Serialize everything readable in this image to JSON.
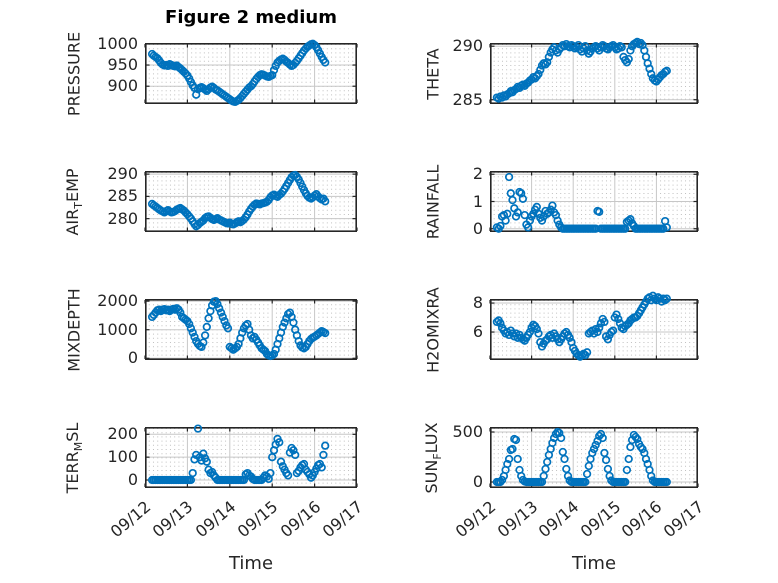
{
  "figure": {
    "title": "Figure 2 medium",
    "style": {
      "marker_color": "#0072BD",
      "axis_color": "#262626",
      "major_grid_color": "#c7c7c7",
      "minor_grid_color": "#c0c0c0",
      "background": "#ffffff"
    }
  },
  "x_axis": {
    "label": "Time",
    "lim": [
      0,
      5
    ],
    "tick_positions": [
      0,
      1,
      2,
      3,
      4,
      5
    ],
    "tick_labels": [
      "09/12",
      "09/13",
      "09/14",
      "09/15",
      "09/16",
      "09/17"
    ],
    "minor_step": 0.1
  },
  "chart_data": [
    {
      "type": "scatter",
      "id": "pressure",
      "name": "PRESSURE",
      "ylabel_parts": [
        {
          "text": "PRESSURE"
        }
      ],
      "yticks": [
        900,
        950,
        1000
      ],
      "ylim": [
        858,
        1002
      ],
      "x_start": 0.167,
      "x_step": 0.0416667,
      "show_x_tick_labels": false,
      "values": [
        976,
        972,
        969,
        966,
        961,
        955,
        951,
        949,
        950,
        948,
        952,
        950,
        948,
        947,
        949,
        945,
        942,
        938,
        934,
        930,
        925,
        918,
        910,
        902,
        896,
        880,
        893,
        896,
        898,
        895,
        892,
        889,
        893,
        897,
        899,
        896,
        892,
        890,
        887,
        884,
        881,
        878,
        875,
        872,
        869,
        866,
        864,
        863,
        865,
        868,
        872,
        877,
        882,
        887,
        892,
        897,
        900,
        905,
        911,
        917,
        922,
        926,
        928,
        927,
        925,
        923,
        922,
        924,
        926,
        938,
        948,
        956,
        960,
        963,
        965,
        962,
        958,
        955,
        951,
        948,
        950,
        955,
        960,
        966,
        972,
        978,
        984,
        989,
        993,
        996,
        999,
        1000,
        997,
        992,
        985,
        977,
        969,
        962,
        956
      ]
    },
    {
      "type": "scatter",
      "id": "theta",
      "name": "THETA",
      "ylabel_parts": [
        {
          "text": "THETA"
        }
      ],
      "yticks": [
        285,
        290
      ],
      "ylim": [
        284.6,
        290.3
      ],
      "x_start": 0.167,
      "x_step": 0.0416667,
      "show_x_tick_labels": false,
      "values": [
        285.2,
        285.1,
        285.3,
        285.2,
        285.4,
        285.3,
        285.5,
        285.6,
        285.8,
        285.7,
        285.9,
        286.0,
        286.2,
        286.1,
        286.3,
        286.4,
        286.3,
        286.5,
        286.6,
        286.8,
        286.9,
        287.1,
        287.0,
        287.2,
        287.4,
        287.8,
        288.2,
        288.4,
        288.3,
        288.5,
        289.0,
        289.4,
        289.7,
        289.9,
        289.6,
        289.4,
        289.7,
        289.9,
        290.1,
        290.0,
        290.2,
        290.0,
        289.9,
        290.1,
        290.0,
        289.8,
        289.9,
        290.1,
        289.7,
        289.5,
        289.8,
        290.0,
        289.6,
        289.3,
        289.5,
        289.8,
        289.9,
        290.0,
        289.8,
        289.6,
        289.9,
        290.1,
        290.0,
        289.8,
        289.7,
        289.9,
        290.0,
        290.1,
        289.9,
        289.7,
        289.8,
        290.0,
        289.9,
        289.0,
        288.7,
        288.5,
        288.8,
        289.6,
        290.0,
        290.2,
        290.3,
        290.4,
        290.2,
        290.3,
        290.1,
        289.6,
        289.0,
        288.4,
        287.9,
        287.4,
        287.0,
        286.8,
        286.7,
        286.9,
        287.1,
        287.3,
        287.4,
        287.6,
        287.7
      ]
    },
    {
      "type": "scatter",
      "id": "air-temp",
      "name": "AIR_TEMP",
      "ylabel_parts": [
        {
          "text": "AIR"
        },
        {
          "text": "T",
          "sub": true
        },
        {
          "text": "EMP"
        }
      ],
      "yticks": [
        280,
        285,
        290
      ],
      "ylim": [
        277.0,
        290.7
      ],
      "x_start": 0.167,
      "x_step": 0.0416667,
      "show_x_tick_labels": false,
      "values": [
        283.3,
        283.0,
        282.7,
        282.4,
        282.1,
        281.8,
        281.6,
        281.4,
        281.7,
        281.9,
        281.6,
        281.4,
        281.5,
        281.7,
        282.0,
        282.2,
        282.4,
        282.1,
        281.8,
        281.4,
        281.0,
        280.5,
        280.0,
        279.4,
        278.8,
        278.3,
        278.6,
        279.0,
        279.3,
        279.6,
        280.1,
        280.4,
        280.5,
        280.2,
        279.9,
        279.7,
        279.9,
        280.1,
        279.8,
        279.6,
        279.4,
        279.2,
        279.0,
        278.9,
        279.1,
        278.8,
        278.7,
        278.9,
        279.2,
        279.4,
        279.2,
        279.5,
        279.8,
        280.3,
        280.9,
        281.6,
        282.2,
        282.7,
        283.1,
        283.4,
        283.3,
        283.2,
        283.4,
        283.5,
        283.6,
        283.8,
        284.2,
        284.8,
        285.2,
        285.4,
        285.1,
        284.9,
        285.3,
        285.6,
        286.1,
        286.7,
        287.3,
        288.0,
        288.7,
        289.3,
        289.7,
        289.8,
        289.4,
        288.8,
        288.0,
        287.2,
        286.4,
        285.7,
        285.1,
        284.7,
        284.5,
        284.8,
        285.2,
        285.5,
        285.0,
        284.6,
        284.3,
        284.5,
        283.9
      ]
    },
    {
      "type": "scatter",
      "id": "rainfall",
      "name": "RAINFALL",
      "ylabel_parts": [
        {
          "text": "RAINFALL"
        }
      ],
      "yticks": [
        0,
        1,
        2
      ],
      "ylim": [
        -0.12,
        2.12
      ],
      "x_start": 0.167,
      "x_step": 0.0416667,
      "show_x_tick_labels": false,
      "values": [
        0.05,
        0,
        0.1,
        0.45,
        0.5,
        0.3,
        0.55,
        1.9,
        1.3,
        1.05,
        0.75,
        0.45,
        0.6,
        1.35,
        1.3,
        1.1,
        0.5,
        0.15,
        0.05,
        0.3,
        0.45,
        0.55,
        0.7,
        0.8,
        0.55,
        0.4,
        0.3,
        0.45,
        0.65,
        0.55,
        0.6,
        0.7,
        0.85,
        0.6,
        0.5,
        0.3,
        0.15,
        0.05,
        0,
        0,
        0,
        0,
        0,
        0,
        0,
        0,
        0,
        0,
        0,
        0,
        0,
        0,
        0,
        0,
        0,
        0,
        0,
        0,
        0.65,
        0.62,
        0,
        0,
        0,
        0,
        0,
        0,
        0,
        0,
        0,
        0,
        0,
        0,
        0,
        0,
        0,
        0.25,
        0.3,
        0.35,
        0.2,
        0.1,
        0,
        0,
        0,
        0,
        0,
        0,
        0,
        0,
        0,
        0,
        0,
        0,
        0,
        0,
        0,
        0,
        0,
        0.28,
        0.05
      ]
    },
    {
      "type": "scatter",
      "id": "mixdepth",
      "name": "MIXDEPTH",
      "ylabel_parts": [
        {
          "text": "MIXDEPTH"
        }
      ],
      "yticks": [
        0,
        1000,
        2000
      ],
      "ylim": [
        -60,
        2075
      ],
      "x_start": 0.167,
      "x_step": 0.0416667,
      "show_x_tick_labels": false,
      "values": [
        1450,
        1520,
        1600,
        1680,
        1700,
        1650,
        1700,
        1720,
        1680,
        1700,
        1650,
        1700,
        1730,
        1700,
        1750,
        1700,
        1600,
        1450,
        1400,
        1350,
        1300,
        1200,
        1050,
        900,
        750,
        600,
        500,
        430,
        400,
        550,
        800,
        1100,
        1400,
        1650,
        1850,
        1980,
        2000,
        1900,
        1750,
        1600,
        1450,
        1300,
        1150,
        1050,
        400,
        350,
        300,
        350,
        400,
        500,
        700,
        900,
        1050,
        1150,
        1200,
        1000,
        800,
        700,
        750,
        650,
        550,
        450,
        350,
        300,
        250,
        150,
        100,
        80,
        100,
        150,
        300,
        500,
        700,
        900,
        1100,
        1250,
        1400,
        1550,
        1600,
        1450,
        1250,
        1000,
        800,
        600,
        450,
        380,
        350,
        400,
        500,
        600,
        680,
        720,
        760,
        800,
        850,
        900,
        950,
        920,
        880
      ]
    },
    {
      "type": "scatter",
      "id": "h2omixra",
      "name": "H2OMIXRA",
      "ylabel_parts": [
        {
          "text": "H2OMIXRA"
        }
      ],
      "yticks": [
        6,
        8
      ],
      "ylim": [
        4.07,
        8.28
      ],
      "x_start": 0.167,
      "x_step": 0.0416667,
      "show_x_tick_labels": false,
      "values": [
        6.7,
        6.8,
        6.6,
        6.3,
        6.1,
        5.9,
        6.0,
        5.8,
        6.1,
        5.9,
        5.7,
        5.9,
        5.6,
        5.8,
        5.6,
        5.5,
        5.4,
        5.6,
        5.8,
        6.0,
        6.3,
        6.5,
        6.4,
        6.2,
        5.9,
        5.3,
        5.0,
        5.2,
        5.4,
        5.5,
        5.7,
        5.8,
        5.6,
        5.9,
        5.7,
        5.5,
        5.3,
        5.5,
        5.7,
        5.9,
        6.0,
        5.8,
        5.6,
        5.3,
        4.9,
        4.7,
        4.5,
        4.4,
        4.3,
        4.4,
        4.5,
        4.4,
        4.6,
        5.9,
        6.0,
        6.1,
        5.9,
        6.2,
        6.0,
        6.3,
        6.6,
        6.9,
        6.7,
        5.7,
        5.5,
        5.8,
        6.0,
        6.1,
        7.0,
        7.2,
        6.9,
        6.6,
        6.3,
        6.2,
        6.4,
        6.5,
        6.6,
        6.8,
        6.9,
        7.0,
        7.0,
        7.1,
        7.3,
        7.5,
        7.7,
        7.9,
        8.1,
        8.3,
        8.4,
        8.2,
        8.5,
        8.3,
        8.2,
        8.4,
        8.3,
        8.1,
        8.3,
        8.2,
        8.3
      ]
    },
    {
      "type": "scatter",
      "id": "terr-msl",
      "name": "TERR_MSL",
      "ylabel_parts": [
        {
          "text": "TERR"
        },
        {
          "text": "M",
          "sub": true
        },
        {
          "text": "SL"
        }
      ],
      "yticks": [
        0,
        100,
        200
      ],
      "ylim": [
        -35,
        232
      ],
      "x_start": 0.167,
      "x_step": 0.0416667,
      "show_x_tick_labels": true,
      "values": [
        0,
        0,
        0,
        0,
        0,
        0,
        0,
        0,
        0,
        0,
        0,
        0,
        0,
        0,
        0,
        0,
        0,
        0,
        0,
        0,
        0,
        0,
        0,
        30,
        90,
        110,
        225,
        100,
        85,
        115,
        95,
        80,
        45,
        30,
        35,
        20,
        10,
        0,
        0,
        0,
        0,
        0,
        0,
        0,
        0,
        0,
        0,
        0,
        0,
        0,
        0,
        0,
        0,
        25,
        30,
        20,
        15,
        5,
        0,
        0,
        0,
        0,
        0,
        10,
        20,
        15,
        5,
        30,
        100,
        130,
        155,
        180,
        165,
        80,
        60,
        45,
        30,
        20,
        120,
        140,
        130,
        110,
        30,
        40,
        55,
        65,
        70,
        45,
        35,
        25,
        10,
        20,
        35,
        50,
        65,
        70,
        55,
        110,
        150
      ]
    },
    {
      "type": "scatter",
      "id": "sun-flux",
      "name": "SUN_FLUX",
      "ylabel_parts": [
        {
          "text": "SUN"
        },
        {
          "text": "F",
          "sub": true
        },
        {
          "text": "LUX"
        }
      ],
      "yticks": [
        0,
        500
      ],
      "ylim": [
        -60,
        550
      ],
      "x_start": 0.167,
      "x_step": 0.0416667,
      "show_x_tick_labels": true,
      "values": [
        0,
        0,
        0,
        20,
        60,
        120,
        180,
        230,
        320,
        330,
        430,
        420,
        230,
        120,
        60,
        20,
        5,
        0,
        0,
        0,
        0,
        0,
        0,
        0,
        0,
        0,
        0,
        60,
        130,
        200,
        270,
        330,
        390,
        440,
        480,
        500,
        490,
        440,
        300,
        230,
        130,
        60,
        15,
        0,
        0,
        0,
        0,
        0,
        0,
        0,
        0,
        0,
        80,
        160,
        230,
        290,
        330,
        370,
        410,
        460,
        480,
        440,
        290,
        220,
        130,
        60,
        15,
        0,
        0,
        0,
        0,
        0,
        0,
        0,
        0,
        120,
        230,
        350,
        420,
        470,
        450,
        430,
        380,
        350,
        330,
        290,
        230,
        180,
        120,
        60,
        15,
        0,
        0,
        0,
        0,
        0,
        0,
        0,
        0
      ]
    }
  ]
}
